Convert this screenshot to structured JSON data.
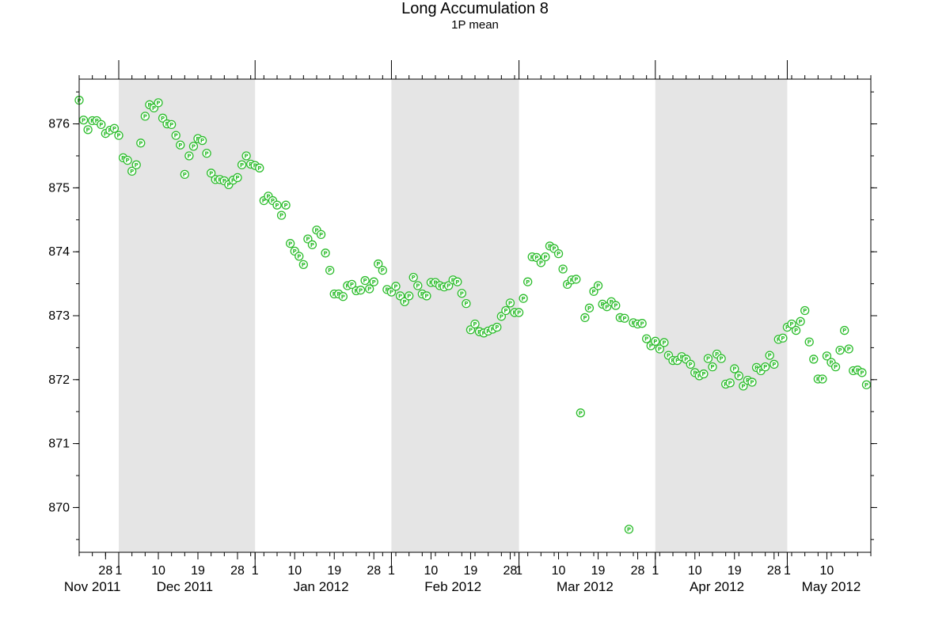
{
  "chart_data": {
    "type": "scatter",
    "title": "Long Accumulation 8",
    "subtitle": "1P mean",
    "point_label": "P",
    "xlabel": "",
    "ylabel": "",
    "x_range": [
      "2011-11-22",
      "2012-05-20"
    ],
    "ylim": [
      869.3,
      876.7
    ],
    "y_ticks": [
      {
        "value": 870,
        "label": "870"
      },
      {
        "value": 871,
        "label": "871"
      },
      {
        "value": 872,
        "label": "872"
      },
      {
        "value": 873,
        "label": "873"
      },
      {
        "value": 874,
        "label": "874"
      },
      {
        "value": 875,
        "label": "875"
      },
      {
        "value": 876,
        "label": "876"
      }
    ],
    "x_day_ticks": [
      {
        "date": "2011-11-28",
        "label": "28"
      },
      {
        "date": "2011-12-01",
        "label": "1"
      },
      {
        "date": "2011-12-10",
        "label": "10"
      },
      {
        "date": "2011-12-19",
        "label": "19"
      },
      {
        "date": "2011-12-28",
        "label": "28"
      },
      {
        "date": "2012-01-01",
        "label": "1"
      },
      {
        "date": "2012-01-10",
        "label": "10"
      },
      {
        "date": "2012-01-19",
        "label": "19"
      },
      {
        "date": "2012-01-28",
        "label": "28"
      },
      {
        "date": "2012-02-01",
        "label": "1"
      },
      {
        "date": "2012-02-10",
        "label": "10"
      },
      {
        "date": "2012-02-19",
        "label": "19"
      },
      {
        "date": "2012-02-28",
        "label": "28"
      },
      {
        "date": "2012-03-01",
        "label": "1"
      },
      {
        "date": "2012-03-10",
        "label": "10"
      },
      {
        "date": "2012-03-19",
        "label": "19"
      },
      {
        "date": "2012-03-28",
        "label": "28"
      },
      {
        "date": "2012-04-01",
        "label": "1"
      },
      {
        "date": "2012-04-10",
        "label": "10"
      },
      {
        "date": "2012-04-19",
        "label": "19"
      },
      {
        "date": "2012-04-28",
        "label": "28"
      },
      {
        "date": "2012-05-01",
        "label": "1"
      },
      {
        "date": "2012-05-10",
        "label": "10"
      }
    ],
    "x_month_labels": [
      {
        "date": "2011-11-25",
        "label": "Nov 2011"
      },
      {
        "date": "2011-12-16",
        "label": "Dec 2011"
      },
      {
        "date": "2012-01-16",
        "label": "Jan 2012"
      },
      {
        "date": "2012-02-15",
        "label": "Feb 2012"
      },
      {
        "date": "2012-03-16",
        "label": "Mar 2012"
      },
      {
        "date": "2012-04-15",
        "label": "Apr 2012"
      },
      {
        "date": "2012-05-11",
        "label": "May 2012"
      }
    ],
    "shaded_months": [
      [
        "2011-12-01",
        "2012-01-01"
      ],
      [
        "2012-02-01",
        "2012-03-01"
      ],
      [
        "2012-04-01",
        "2012-05-01"
      ]
    ],
    "grid": false,
    "series": [
      {
        "points": [
          [
            "2011-11-22",
            876.37
          ],
          [
            "2011-11-23",
            876.06
          ],
          [
            "2011-11-24",
            875.91
          ],
          [
            "2011-11-25",
            876.05
          ],
          [
            "2011-11-26",
            876.05
          ],
          [
            "2011-11-27",
            875.99
          ],
          [
            "2011-11-28",
            875.85
          ],
          [
            "2011-11-29",
            875.9
          ],
          [
            "2011-11-30",
            875.93
          ],
          [
            "2011-12-01",
            875.82
          ],
          [
            "2011-12-02",
            875.47
          ],
          [
            "2011-12-03",
            875.43
          ],
          [
            "2011-12-04",
            875.26
          ],
          [
            "2011-12-05",
            875.36
          ],
          [
            "2011-12-06",
            875.7
          ],
          [
            "2011-12-07",
            876.12
          ],
          [
            "2011-12-08",
            876.3
          ],
          [
            "2011-12-09",
            876.25
          ],
          [
            "2011-12-10",
            876.33
          ],
          [
            "2011-12-11",
            876.09
          ],
          [
            "2011-12-12",
            876.0
          ],
          [
            "2011-12-13",
            875.99
          ],
          [
            "2011-12-14",
            875.82
          ],
          [
            "2011-12-15",
            875.67
          ],
          [
            "2011-12-16",
            875.21
          ],
          [
            "2011-12-17",
            875.5
          ],
          [
            "2011-12-18",
            875.65
          ],
          [
            "2011-12-19",
            875.77
          ],
          [
            "2011-12-20",
            875.74
          ],
          [
            "2011-12-21",
            875.54
          ],
          [
            "2011-12-22",
            875.23
          ],
          [
            "2011-12-23",
            875.13
          ],
          [
            "2011-12-24",
            875.13
          ],
          [
            "2011-12-25",
            875.11
          ],
          [
            "2011-12-26",
            875.05
          ],
          [
            "2011-12-27",
            875.12
          ],
          [
            "2011-12-28",
            875.16
          ],
          [
            "2011-12-29",
            875.36
          ],
          [
            "2011-12-30",
            875.5
          ],
          [
            "2011-12-31",
            875.37
          ],
          [
            "2012-01-01",
            875.35
          ],
          [
            "2012-01-02",
            875.31
          ],
          [
            "2012-01-03",
            874.8
          ],
          [
            "2012-01-04",
            874.87
          ],
          [
            "2012-01-05",
            874.8
          ],
          [
            "2012-01-06",
            874.73
          ],
          [
            "2012-01-07",
            874.57
          ],
          [
            "2012-01-08",
            874.73
          ],
          [
            "2012-01-09",
            874.13
          ],
          [
            "2012-01-10",
            874.01
          ],
          [
            "2012-01-11",
            873.93
          ],
          [
            "2012-01-12",
            873.8
          ],
          [
            "2012-01-13",
            874.2
          ],
          [
            "2012-01-14",
            874.11
          ],
          [
            "2012-01-15",
            874.34
          ],
          [
            "2012-01-16",
            874.27
          ],
          [
            "2012-01-17",
            873.98
          ],
          [
            "2012-01-18",
            873.71
          ],
          [
            "2012-01-19",
            873.34
          ],
          [
            "2012-01-20",
            873.34
          ],
          [
            "2012-01-21",
            873.3
          ],
          [
            "2012-01-22",
            873.47
          ],
          [
            "2012-01-23",
            873.49
          ],
          [
            "2012-01-24",
            873.39
          ],
          [
            "2012-01-25",
            873.4
          ],
          [
            "2012-01-26",
            873.55
          ],
          [
            "2012-01-27",
            873.42
          ],
          [
            "2012-01-28",
            873.53
          ],
          [
            "2012-01-29",
            873.81
          ],
          [
            "2012-01-30",
            873.71
          ],
          [
            "2012-01-31",
            873.41
          ],
          [
            "2012-02-01",
            873.37
          ],
          [
            "2012-02-02",
            873.46
          ],
          [
            "2012-02-03",
            873.31
          ],
          [
            "2012-02-04",
            873.22
          ],
          [
            "2012-02-05",
            873.31
          ],
          [
            "2012-02-06",
            873.6
          ],
          [
            "2012-02-07",
            873.47
          ],
          [
            "2012-02-08",
            873.34
          ],
          [
            "2012-02-09",
            873.31
          ],
          [
            "2012-02-10",
            873.52
          ],
          [
            "2012-02-11",
            873.52
          ],
          [
            "2012-02-12",
            873.47
          ],
          [
            "2012-02-13",
            873.45
          ],
          [
            "2012-02-14",
            873.47
          ],
          [
            "2012-02-15",
            873.56
          ],
          [
            "2012-02-16",
            873.53
          ],
          [
            "2012-02-17",
            873.35
          ],
          [
            "2012-02-18",
            873.19
          ],
          [
            "2012-02-19",
            872.78
          ],
          [
            "2012-02-20",
            872.87
          ],
          [
            "2012-02-21",
            872.75
          ],
          [
            "2012-02-22",
            872.73
          ],
          [
            "2012-02-23",
            872.76
          ],
          [
            "2012-02-24",
            872.79
          ],
          [
            "2012-02-25",
            872.82
          ],
          [
            "2012-02-26",
            872.99
          ],
          [
            "2012-02-27",
            873.08
          ],
          [
            "2012-02-28",
            873.2
          ],
          [
            "2012-02-29",
            873.05
          ],
          [
            "2012-03-01",
            873.05
          ],
          [
            "2012-03-02",
            873.27
          ],
          [
            "2012-03-03",
            873.53
          ],
          [
            "2012-03-04",
            873.92
          ],
          [
            "2012-03-05",
            873.91
          ],
          [
            "2012-03-06",
            873.83
          ],
          [
            "2012-03-07",
            873.92
          ],
          [
            "2012-03-08",
            874.09
          ],
          [
            "2012-03-09",
            874.05
          ],
          [
            "2012-03-10",
            873.97
          ],
          [
            "2012-03-11",
            873.73
          ],
          [
            "2012-03-12",
            873.49
          ],
          [
            "2012-03-13",
            873.56
          ],
          [
            "2012-03-14",
            873.57
          ],
          [
            "2012-03-15",
            871.48
          ],
          [
            "2012-03-16",
            872.97
          ],
          [
            "2012-03-17",
            873.12
          ],
          [
            "2012-03-18",
            873.38
          ],
          [
            "2012-03-19",
            873.47
          ],
          [
            "2012-03-20",
            873.18
          ],
          [
            "2012-03-21",
            873.14
          ],
          [
            "2012-03-22",
            873.22
          ],
          [
            "2012-03-23",
            873.16
          ],
          [
            "2012-03-24",
            872.97
          ],
          [
            "2012-03-25",
            872.96
          ],
          [
            "2012-03-26",
            869.66
          ],
          [
            "2012-03-27",
            872.89
          ],
          [
            "2012-03-28",
            872.87
          ],
          [
            "2012-03-29",
            872.88
          ],
          [
            "2012-03-30",
            872.64
          ],
          [
            "2012-03-31",
            872.53
          ],
          [
            "2012-04-01",
            872.6
          ],
          [
            "2012-04-02",
            872.48
          ],
          [
            "2012-04-03",
            872.58
          ],
          [
            "2012-04-04",
            872.38
          ],
          [
            "2012-04-05",
            872.3
          ],
          [
            "2012-04-06",
            872.3
          ],
          [
            "2012-04-07",
            872.36
          ],
          [
            "2012-04-08",
            872.32
          ],
          [
            "2012-04-09",
            872.24
          ],
          [
            "2012-04-10",
            872.11
          ],
          [
            "2012-04-11",
            872.06
          ],
          [
            "2012-04-12",
            872.09
          ],
          [
            "2012-04-13",
            872.33
          ],
          [
            "2012-04-14",
            872.2
          ],
          [
            "2012-04-15",
            872.4
          ],
          [
            "2012-04-16",
            872.33
          ],
          [
            "2012-04-17",
            871.93
          ],
          [
            "2012-04-18",
            871.95
          ],
          [
            "2012-04-19",
            872.17
          ],
          [
            "2012-04-20",
            872.06
          ],
          [
            "2012-04-21",
            871.9
          ],
          [
            "2012-04-22",
            871.99
          ],
          [
            "2012-04-23",
            871.96
          ],
          [
            "2012-04-24",
            872.19
          ],
          [
            "2012-04-25",
            872.14
          ],
          [
            "2012-04-26",
            872.2
          ],
          [
            "2012-04-27",
            872.38
          ],
          [
            "2012-04-28",
            872.24
          ],
          [
            "2012-04-29",
            872.63
          ],
          [
            "2012-04-30",
            872.65
          ],
          [
            "2012-05-01",
            872.82
          ],
          [
            "2012-05-02",
            872.87
          ],
          [
            "2012-05-03",
            872.77
          ],
          [
            "2012-05-04",
            872.91
          ],
          [
            "2012-05-05",
            873.08
          ],
          [
            "2012-05-06",
            872.59
          ],
          [
            "2012-05-07",
            872.32
          ],
          [
            "2012-05-08",
            872.01
          ],
          [
            "2012-05-09",
            872.01
          ],
          [
            "2012-05-10",
            872.37
          ],
          [
            "2012-05-11",
            872.27
          ],
          [
            "2012-05-12",
            872.2
          ],
          [
            "2012-05-13",
            872.46
          ],
          [
            "2012-05-14",
            872.77
          ],
          [
            "2012-05-15",
            872.48
          ],
          [
            "2012-05-16",
            872.14
          ],
          [
            "2012-05-17",
            872.15
          ],
          [
            "2012-05-18",
            872.11
          ],
          [
            "2012-05-19",
            871.92
          ]
        ]
      }
    ]
  },
  "colors": {
    "point": "#2dbd2d",
    "shade": "#e5e5e5",
    "axis": "#000000",
    "background": "#ffffff"
  }
}
